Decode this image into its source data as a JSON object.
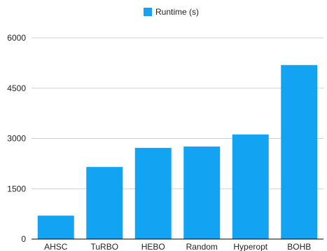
{
  "chart_data": {
    "type": "bar",
    "categories": [
      "AHSC",
      "TuRBO",
      "HEBO",
      "Random",
      "Hyperopt",
      "BOHB"
    ],
    "series": [
      {
        "name": "Runtime (s)",
        "values": [
          700,
          2150,
          2720,
          2760,
          3120,
          5190
        ]
      }
    ],
    "ylim": [
      0,
      6000
    ],
    "yticks": [
      0,
      1500,
      3000,
      4500,
      6000
    ],
    "grid": true,
    "legend": "top-center",
    "colors": {
      "bar": "#13A3F3",
      "grid": "#D0D0D0",
      "axis": "#000000"
    }
  }
}
